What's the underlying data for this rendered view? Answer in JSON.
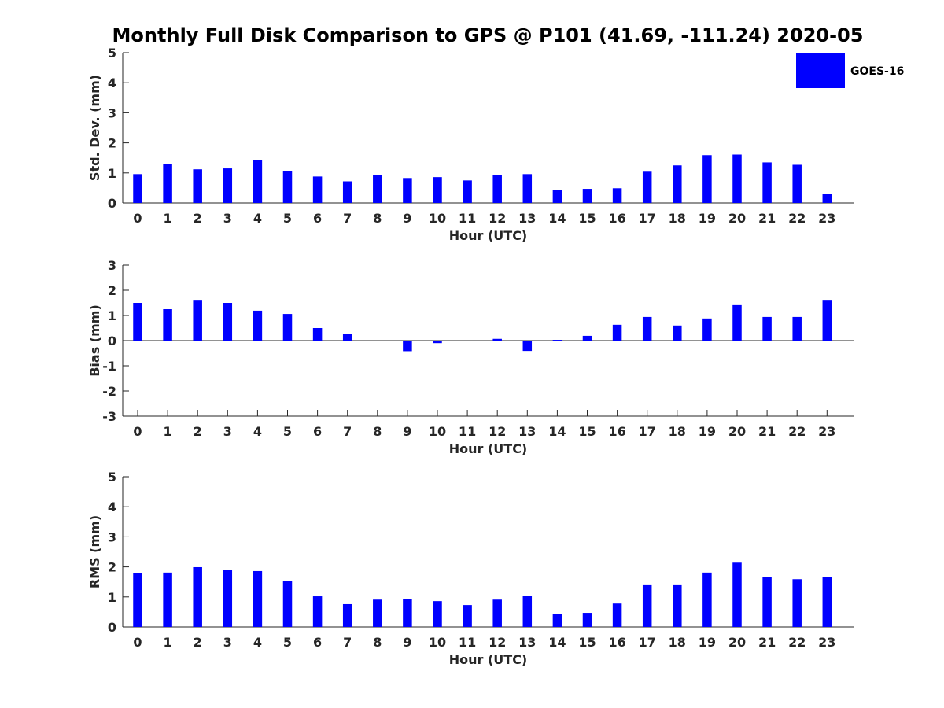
{
  "figure": {
    "title": "Monthly Full Disk Comparison to GPS @ P101 (41.69, -111.24) 2020-05"
  },
  "legend": {
    "label": "GOES-16",
    "color": "#0000ff",
    "placement": "top-right"
  },
  "chart_data": [
    {
      "type": "bar",
      "series": [
        {
          "name": "GOES-16",
          "values": [
            0.96,
            1.3,
            1.12,
            1.15,
            1.43,
            1.07,
            0.88,
            0.72,
            0.92,
            0.83,
            0.86,
            0.75,
            0.92,
            0.96,
            0.44,
            0.47,
            0.49,
            1.04,
            1.25,
            1.59,
            1.61,
            1.35,
            1.27,
            0.31
          ]
        }
      ],
      "categories": [
        "0",
        "1",
        "2",
        "3",
        "4",
        "5",
        "6",
        "7",
        "8",
        "9",
        "10",
        "11",
        "12",
        "13",
        "14",
        "15",
        "16",
        "17",
        "18",
        "19",
        "20",
        "21",
        "22",
        "23"
      ],
      "xlabel": "Hour (UTC)",
      "ylabel": "Std. Dev. (mm)",
      "ylim": [
        0,
        5
      ],
      "yticks": [
        "0",
        "1",
        "2",
        "3",
        "4",
        "5"
      ],
      "grid": false
    },
    {
      "type": "bar",
      "series": [
        {
          "name": "GOES-16",
          "values": [
            1.5,
            1.25,
            1.62,
            1.5,
            1.19,
            1.06,
            0.5,
            0.28,
            0.0,
            -0.42,
            -0.1,
            0.0,
            0.07,
            -0.41,
            0.03,
            0.19,
            0.63,
            0.94,
            0.6,
            0.88,
            1.41,
            0.94,
            0.94,
            1.62
          ]
        }
      ],
      "categories": [
        "0",
        "1",
        "2",
        "3",
        "4",
        "5",
        "6",
        "7",
        "8",
        "9",
        "10",
        "11",
        "12",
        "13",
        "14",
        "15",
        "16",
        "17",
        "18",
        "19",
        "20",
        "21",
        "22",
        "23"
      ],
      "xlabel": "Hour (UTC)",
      "ylabel": "Bias (mm)",
      "ylim": [
        -3,
        3
      ],
      "yticks": [
        "-3",
        "-2",
        "-1",
        "0",
        "1",
        "2",
        "3"
      ],
      "grid": false
    },
    {
      "type": "bar",
      "series": [
        {
          "name": "GOES-16",
          "values": [
            1.78,
            1.81,
            1.99,
            1.91,
            1.86,
            1.52,
            1.02,
            0.76,
            0.91,
            0.94,
            0.86,
            0.73,
            0.91,
            1.04,
            0.44,
            0.47,
            0.78,
            1.39,
            1.39,
            1.81,
            2.14,
            1.65,
            1.59,
            1.65
          ]
        }
      ],
      "categories": [
        "0",
        "1",
        "2",
        "3",
        "4",
        "5",
        "6",
        "7",
        "8",
        "9",
        "10",
        "11",
        "12",
        "13",
        "14",
        "15",
        "16",
        "17",
        "18",
        "19",
        "20",
        "21",
        "22",
        "23"
      ],
      "xlabel": "Hour (UTC)",
      "ylabel": "RMS (mm)",
      "ylim": [
        0,
        5
      ],
      "yticks": [
        "0",
        "1",
        "2",
        "3",
        "4",
        "5"
      ],
      "grid": false
    }
  ]
}
